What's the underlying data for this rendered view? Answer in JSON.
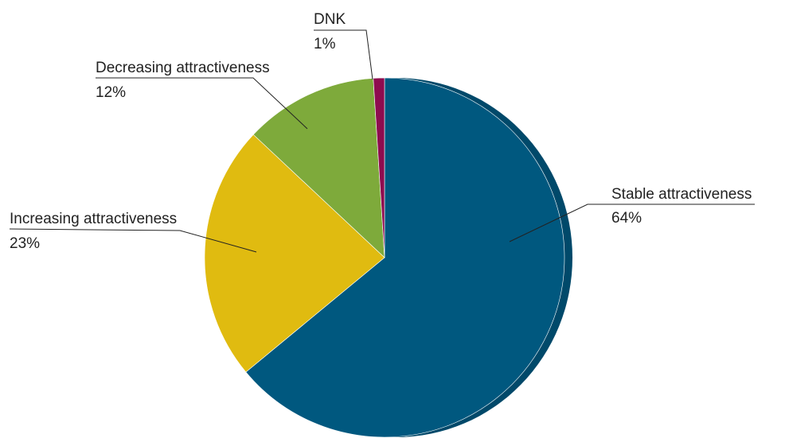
{
  "chart_data": {
    "type": "pie",
    "title": "",
    "slices": [
      {
        "label": "Stable attractiveness",
        "value": 64,
        "value_label": "64%",
        "color": "#00587f"
      },
      {
        "label": "Increasing attractiveness",
        "value": 23,
        "value_label": "23%",
        "color": "#e0bb10"
      },
      {
        "label": "Decreasing attractiveness",
        "value": 12,
        "value_label": "12%",
        "color": "#7eaa3b"
      },
      {
        "label": "DNK",
        "value": 1,
        "value_label": "1%",
        "color": "#8e0c4f"
      }
    ],
    "legend": "none",
    "start_angle_deg": 0,
    "direction": "clockwise"
  }
}
